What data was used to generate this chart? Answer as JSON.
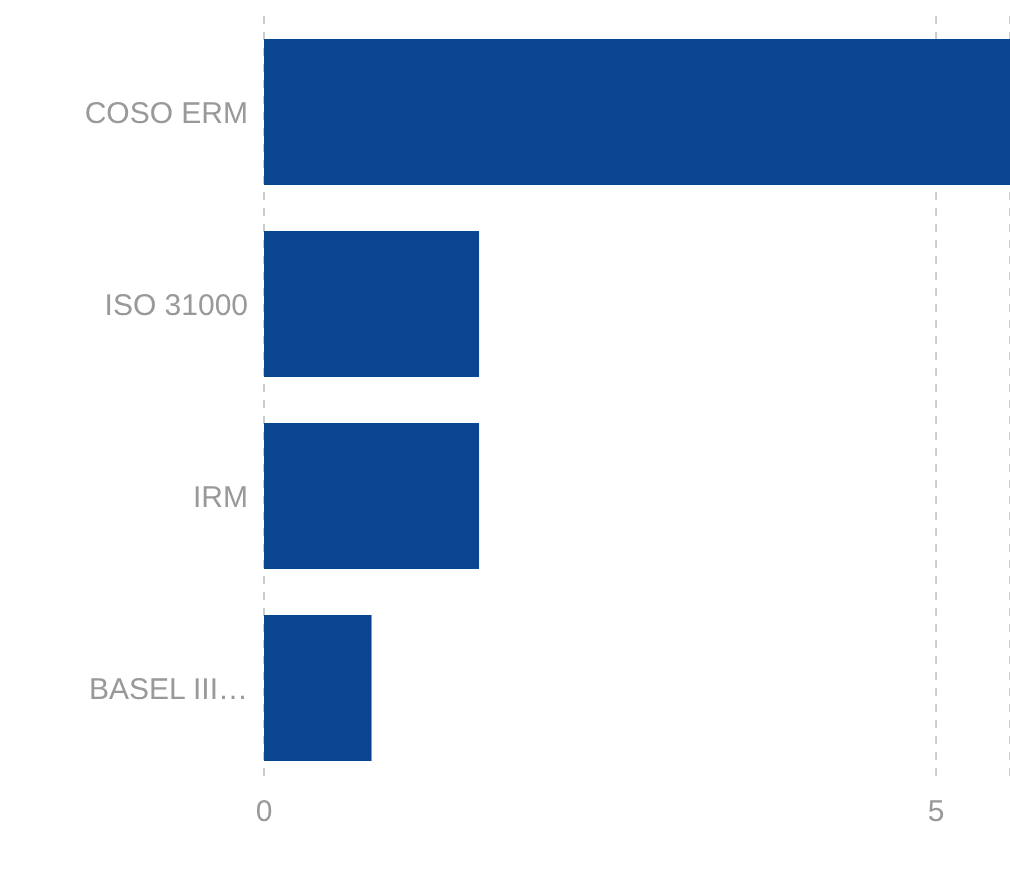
{
  "chart_data": {
    "type": "bar",
    "orientation": "horizontal",
    "categories": [
      "COSO ERM",
      "ISO 31000",
      "IRM",
      "BASEL III…"
    ],
    "values": [
      5.55,
      1.6,
      1.6,
      0.8
    ],
    "color": "#0b4592",
    "xlim": [
      0,
      5.55
    ],
    "xticks": [
      0,
      5
    ],
    "grid": "x"
  }
}
